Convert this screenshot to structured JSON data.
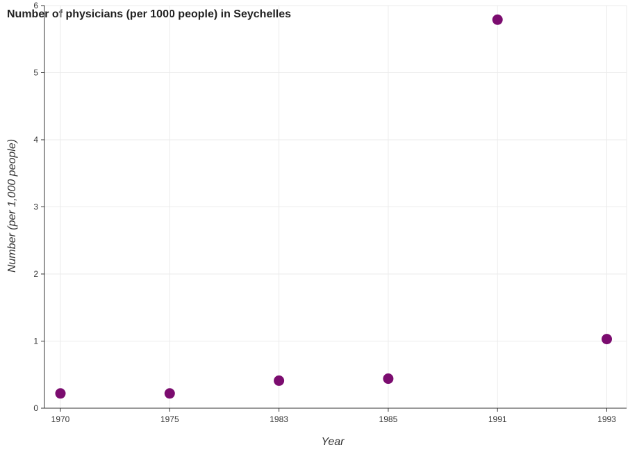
{
  "chart_data": {
    "type": "scatter",
    "title": "Number of physicians (per 1000 people) in Seychelles",
    "xlabel": "Year",
    "ylabel": "Number (per 1,000 people)",
    "categories": [
      "1970",
      "1975",
      "1983",
      "1985",
      "1991",
      "1993"
    ],
    "series": [
      {
        "values": [
          0.22,
          0.22,
          0.41,
          0.44,
          5.79,
          1.03
        ],
        "color": "#7b0c6f"
      }
    ],
    "yticks": [
      "0",
      "1",
      "2",
      "3",
      "4",
      "5",
      "6"
    ],
    "ylim": [
      0,
      6
    ],
    "grid": true,
    "legend": "none"
  }
}
